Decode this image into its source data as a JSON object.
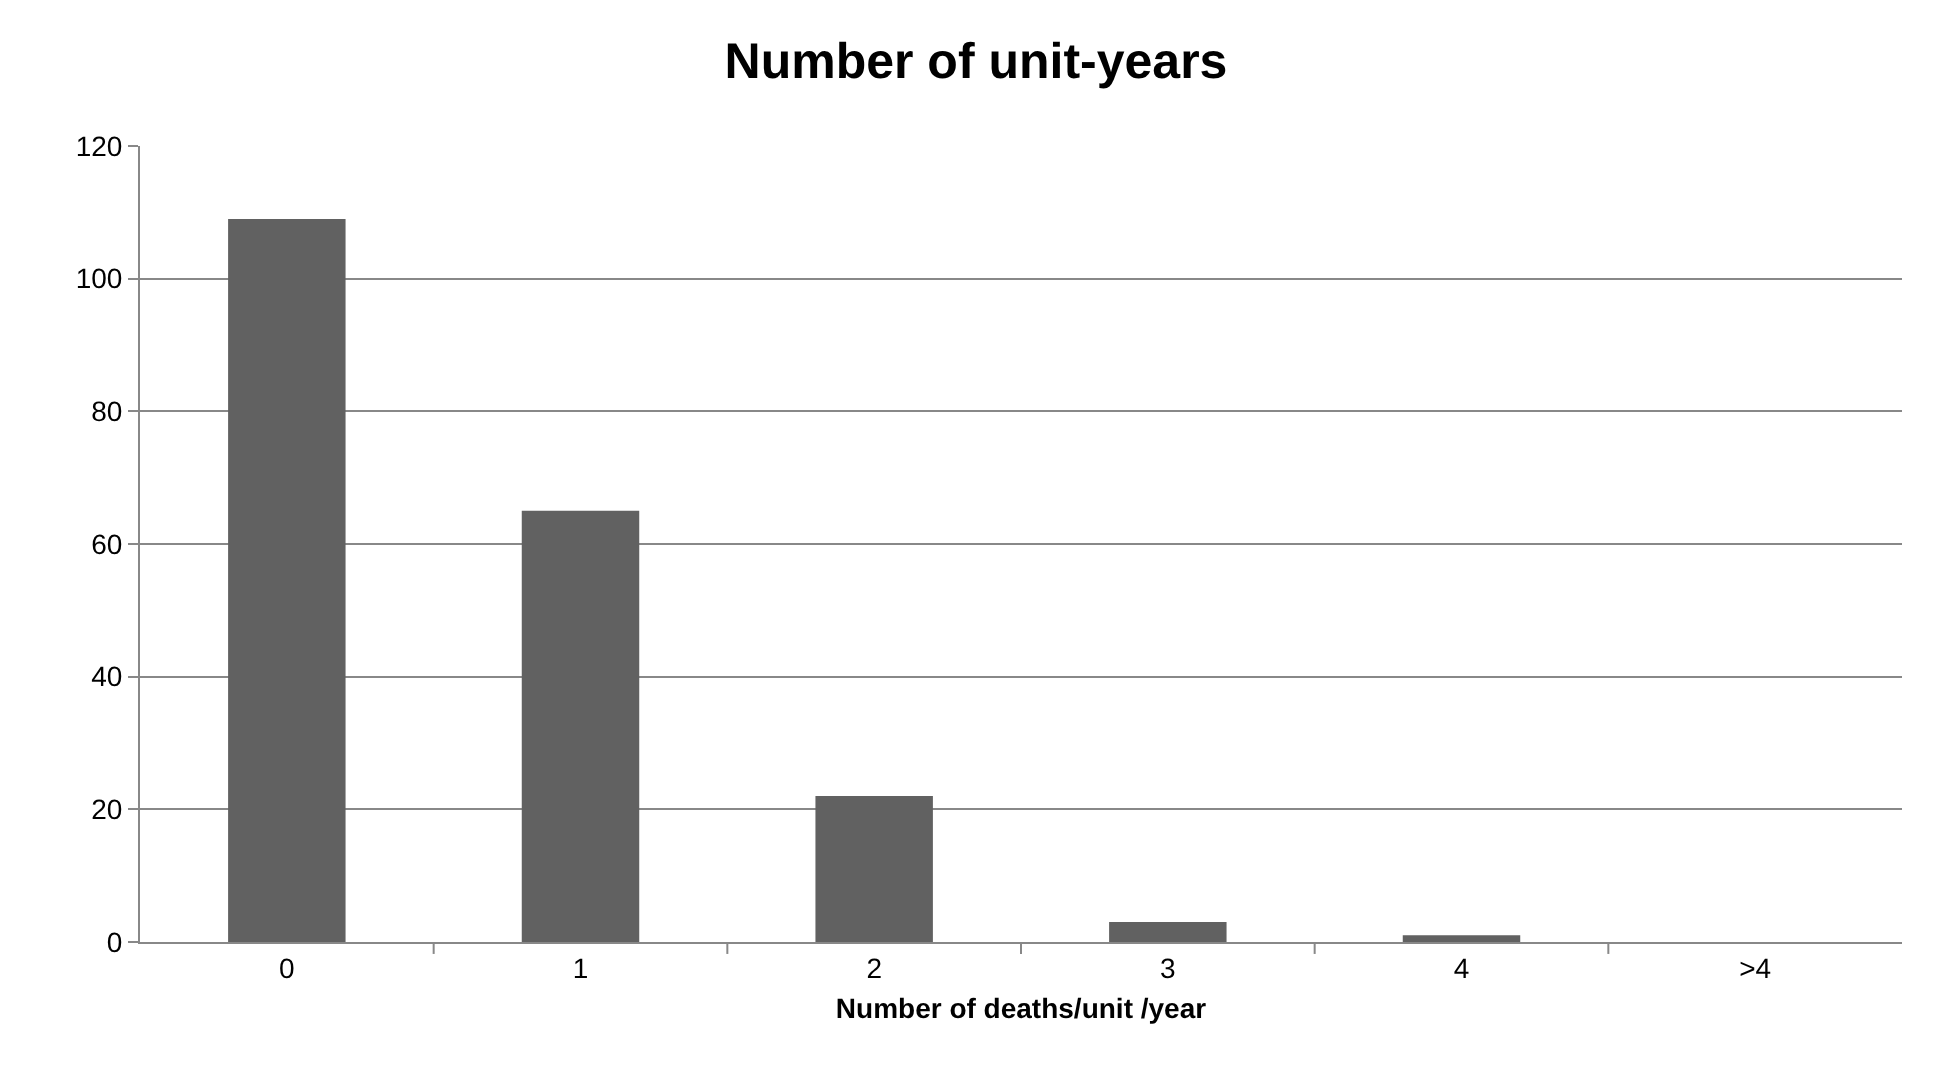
{
  "chart_data": {
    "type": "bar",
    "title": "Number of unit-years",
    "xlabel": "Number of deaths/unit /year",
    "categories": [
      "0",
      "1",
      "2",
      "3",
      "4",
      ">4"
    ],
    "values": [
      109,
      65,
      22,
      3,
      1,
      0
    ],
    "color": "#616161",
    "ylim": [
      0,
      120
    ],
    "yticks": [
      0,
      20,
      40,
      60,
      80,
      100,
      120
    ],
    "grid": "y",
    "legend": false
  }
}
